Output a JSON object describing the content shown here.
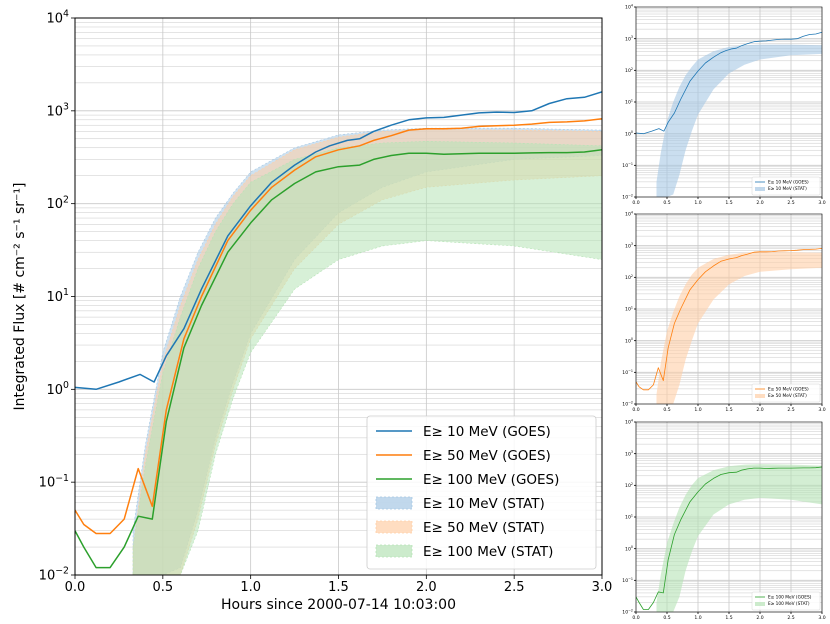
{
  "colors": {
    "goes10": "#1f77b4",
    "goes50": "#ff7f0e",
    "goes100": "#2ca02c",
    "stat10": "#a6c8e4",
    "stat50": "#ffcfa6",
    "stat100": "#b6e3b6",
    "grid": "#c8c8c8"
  },
  "chart_data": [
    {
      "type": "line",
      "panel": "main",
      "xlabel": "Hours since 2000-07-14 10:03:00",
      "ylabel": "Integrated Flux [# cm⁻² s⁻¹ sr⁻¹]",
      "xlim": [
        0,
        3.0
      ],
      "ylim": [
        0.01,
        10000
      ],
      "yscale": "log",
      "xticks": [
        "0.0",
        "0.5",
        "1.0",
        "1.5",
        "2.0",
        "2.5",
        "3.0"
      ],
      "yticks": [
        {
          "base": "10",
          "exp": "−2"
        },
        {
          "base": "10",
          "exp": "−1"
        },
        {
          "base": "10",
          "exp": "0"
        },
        {
          "base": "10",
          "exp": "1"
        },
        {
          "base": "10",
          "exp": "2"
        },
        {
          "base": "10",
          "exp": "3"
        },
        {
          "base": "10",
          "exp": "4"
        }
      ],
      "grid": true,
      "legend_position": "lower-right",
      "series": [
        {
          "name": "E≥ 10 MeV (GOES)",
          "key": "goes10",
          "x": [
            0,
            0.12,
            0.25,
            0.37,
            0.45,
            0.52,
            0.62,
            0.72,
            0.87,
            1.0,
            1.12,
            1.25,
            1.37,
            1.45,
            1.55,
            1.62,
            1.7,
            1.8,
            1.9,
            2.0,
            2.1,
            2.2,
            2.3,
            2.4,
            2.5,
            2.6,
            2.7,
            2.8,
            2.9,
            3.0
          ],
          "y": [
            1.05,
            1.0,
            1.2,
            1.45,
            1.2,
            2.3,
            4.5,
            12,
            45,
            95,
            170,
            260,
            360,
            420,
            480,
            500,
            600,
            700,
            800,
            840,
            850,
            900,
            950,
            970,
            960,
            1000,
            1200,
            1350,
            1400,
            1600
          ]
        },
        {
          "name": "E≥ 50 MeV (GOES)",
          "key": "goes50",
          "x": [
            0,
            0.05,
            0.12,
            0.2,
            0.28,
            0.36,
            0.44,
            0.52,
            0.62,
            0.72,
            0.87,
            1.0,
            1.12,
            1.25,
            1.37,
            1.5,
            1.62,
            1.7,
            1.8,
            1.9,
            2.0,
            2.1,
            2.2,
            2.3,
            2.4,
            2.5,
            2.6,
            2.7,
            2.8,
            2.9,
            3.0
          ],
          "y": [
            0.05,
            0.035,
            0.028,
            0.028,
            0.04,
            0.14,
            0.055,
            0.6,
            3.5,
            10,
            40,
            85,
            150,
            230,
            320,
            380,
            420,
            480,
            540,
            620,
            640,
            640,
            650,
            680,
            690,
            700,
            720,
            750,
            760,
            780,
            820
          ]
        },
        {
          "name": "E≥ 100 MeV (GOES)",
          "key": "goes100",
          "x": [
            0,
            0.05,
            0.12,
            0.2,
            0.28,
            0.36,
            0.44,
            0.52,
            0.62,
            0.72,
            0.87,
            1.0,
            1.12,
            1.25,
            1.37,
            1.5,
            1.62,
            1.7,
            1.8,
            1.9,
            2.0,
            2.1,
            2.2,
            2.3,
            2.4,
            2.5,
            2.6,
            2.7,
            2.8,
            2.9,
            3.0
          ],
          "y": [
            0.03,
            0.02,
            0.012,
            0.012,
            0.02,
            0.043,
            0.04,
            0.45,
            2.8,
            8,
            30,
            62,
            110,
            165,
            220,
            250,
            260,
            300,
            330,
            350,
            350,
            340,
            345,
            350,
            350,
            350,
            352,
            355,
            355,
            360,
            380
          ]
        }
      ],
      "bands": [
        {
          "name": "E≥ 10 MeV (STAT)",
          "key": "stat10",
          "x": [
            0.33,
            0.4,
            0.5,
            0.6,
            0.7,
            0.8,
            0.9,
            1.0,
            1.25,
            1.5,
            1.75,
            2.0,
            2.5,
            3.0
          ],
          "upper": [
            0.03,
            0.25,
            2.5,
            10,
            30,
            70,
            130,
            220,
            400,
            550,
            620,
            650,
            650,
            620
          ],
          "lower": [
            0.01,
            0.01,
            0.01,
            0.012,
            0.05,
            0.3,
            1.2,
            4,
            25,
            80,
            150,
            220,
            300,
            330
          ]
        },
        {
          "name": "E≥ 50 MeV (STAT)",
          "key": "stat50",
          "x": [
            0.33,
            0.4,
            0.5,
            0.6,
            0.7,
            0.8,
            0.9,
            1.0,
            1.25,
            1.5,
            1.75,
            2.0,
            2.5,
            3.0
          ],
          "upper": [
            0.02,
            0.2,
            2.0,
            8,
            25,
            60,
            120,
            200,
            380,
            520,
            600,
            630,
            620,
            600
          ],
          "lower": [
            0.01,
            0.01,
            0.01,
            0.01,
            0.04,
            0.25,
            1.0,
            3.5,
            20,
            60,
            110,
            150,
            180,
            200
          ]
        },
        {
          "name": "E≥ 100 MeV (STAT)",
          "key": "stat100",
          "x": [
            0.33,
            0.4,
            0.5,
            0.6,
            0.7,
            0.8,
            0.9,
            1.0,
            1.25,
            1.5,
            1.75,
            2.0,
            2.5,
            3.0
          ],
          "upper": [
            0.02,
            0.15,
            1.5,
            6,
            20,
            50,
            100,
            170,
            300,
            400,
            450,
            470,
            450,
            420
          ],
          "lower": [
            0.01,
            0.01,
            0.01,
            0.01,
            0.03,
            0.2,
            0.8,
            2.5,
            12,
            25,
            35,
            40,
            35,
            25
          ]
        }
      ]
    },
    {
      "type": "line",
      "panel": "small-10",
      "xlim": [
        0,
        3.0
      ],
      "ylim": [
        0.01,
        10000
      ],
      "yscale": "log",
      "xticks": [
        "0.0",
        "0.5",
        "1.0",
        "1.5",
        "2.0",
        "2.5",
        "3.0"
      ],
      "yticks": [
        {
          "base": "10",
          "exp": "−2"
        },
        {
          "base": "10",
          "exp": "−1"
        },
        {
          "base": "10",
          "exp": "0"
        },
        {
          "base": "10",
          "exp": "1"
        },
        {
          "base": "10",
          "exp": "2"
        },
        {
          "base": "10",
          "exp": "3"
        },
        {
          "base": "10",
          "exp": "4"
        }
      ],
      "grid": true,
      "legend_position": "lower-right",
      "legend": [
        "E≥ 10 MeV (GOES)",
        "E≥ 10 MeV (STAT)"
      ],
      "series_key": "goes10",
      "band_key": "stat10"
    },
    {
      "type": "line",
      "panel": "small-50",
      "xlim": [
        0,
        3.0
      ],
      "ylim": [
        0.01,
        10000
      ],
      "yscale": "log",
      "xticks": [
        "0.0",
        "0.5",
        "1.0",
        "1.5",
        "2.0",
        "2.5",
        "3.0"
      ],
      "yticks": [
        {
          "base": "10",
          "exp": "−2"
        },
        {
          "base": "10",
          "exp": "−1"
        },
        {
          "base": "10",
          "exp": "0"
        },
        {
          "base": "10",
          "exp": "1"
        },
        {
          "base": "10",
          "exp": "2"
        },
        {
          "base": "10",
          "exp": "3"
        },
        {
          "base": "10",
          "exp": "4"
        }
      ],
      "grid": true,
      "legend_position": "lower-right",
      "legend": [
        "E≥ 50 MeV (GOES)",
        "E≥ 50 MeV (STAT)"
      ],
      "series_key": "goes50",
      "band_key": "stat50"
    },
    {
      "type": "line",
      "panel": "small-100",
      "xlim": [
        0,
        3.0
      ],
      "ylim": [
        0.01,
        10000
      ],
      "yscale": "log",
      "xticks": [
        "0.0",
        "0.5",
        "1.0",
        "1.5",
        "2.0",
        "2.5",
        "3.0"
      ],
      "yticks": [
        {
          "base": "10",
          "exp": "−2"
        },
        {
          "base": "10",
          "exp": "−1"
        },
        {
          "base": "10",
          "exp": "0"
        },
        {
          "base": "10",
          "exp": "1"
        },
        {
          "base": "10",
          "exp": "2"
        },
        {
          "base": "10",
          "exp": "3"
        },
        {
          "base": "10",
          "exp": "4"
        }
      ],
      "grid": true,
      "legend_position": "lower-right",
      "legend": [
        "E≥ 100 MeV (GOES)",
        "E≥ 100 MeV (STAT)"
      ],
      "series_key": "goes100",
      "band_key": "stat100"
    }
  ]
}
